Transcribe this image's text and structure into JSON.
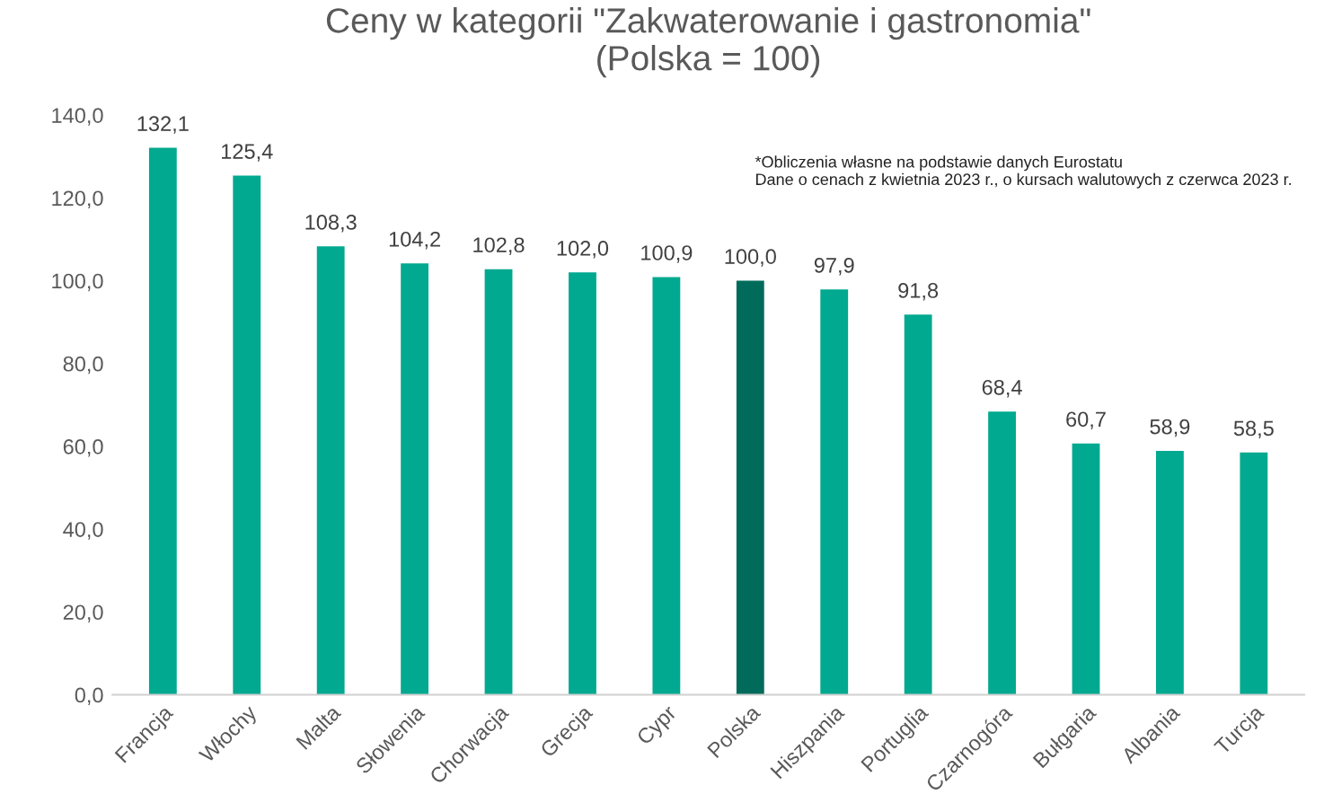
{
  "chart_data": {
    "type": "bar",
    "title": "Ceny w kategorii \"Zakwaterowanie i gastronomia\"\n(Polska = 100)",
    "categories": [
      "Francja",
      "Włochy",
      "Malta",
      "Słowenia",
      "Chorwacja",
      "Grecja",
      "Cypr",
      "Polska",
      "Hiszpania",
      "Portuglia",
      "Czarnogóra",
      "Bułgaria",
      "Albania",
      "Turcja"
    ],
    "values": [
      132.1,
      125.4,
      108.3,
      104.2,
      102.8,
      102.0,
      100.9,
      100.0,
      97.9,
      91.8,
      68.4,
      60.7,
      58.9,
      58.5
    ],
    "value_labels": [
      "132,1",
      "125,4",
      "108,3",
      "104,2",
      "102,8",
      "102,0",
      "100,9",
      "100,0",
      "97,9",
      "91,8",
      "68,4",
      "60,7",
      "58,9",
      "58,5"
    ],
    "colors": [
      "#00a98f",
      "#00a98f",
      "#00a98f",
      "#00a98f",
      "#00a98f",
      "#00a98f",
      "#00a98f",
      "#006b5a",
      "#00a98f",
      "#00a98f",
      "#00a98f",
      "#00a98f",
      "#00a98f",
      "#00a98f"
    ],
    "ylim": [
      0,
      140
    ],
    "yticks": [
      {
        "value": 0,
        "label": "0,0"
      },
      {
        "value": 20,
        "label": "20,0"
      },
      {
        "value": 40,
        "label": "40,0"
      },
      {
        "value": 60,
        "label": "60,0"
      },
      {
        "value": 80,
        "label": "80,0"
      },
      {
        "value": 100,
        "label": "100,0"
      },
      {
        "value": 120,
        "label": "120,0"
      },
      {
        "value": 140,
        "label": "140,0"
      }
    ],
    "annotations": [
      "*Obliczenia własne na podstawie danych Eurostatu\nDane o cenach z kwietnia 2023 r., o kursach walutowych z czerwca 2023 r."
    ],
    "grid": false
  }
}
